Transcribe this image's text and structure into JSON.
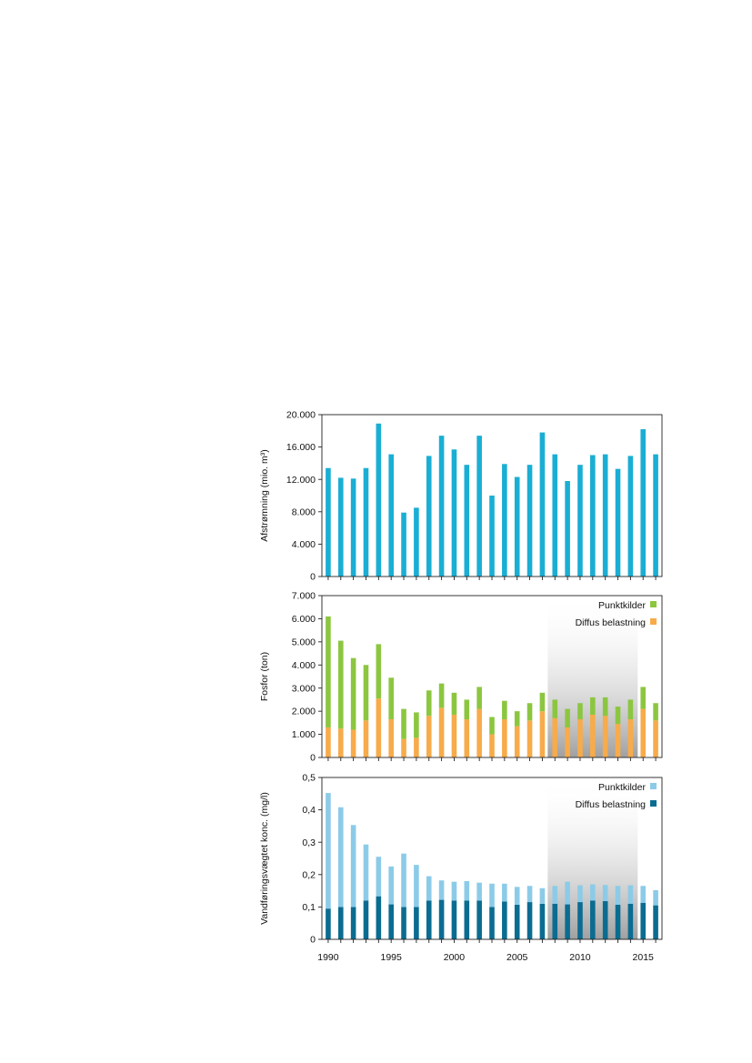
{
  "chart_data": [
    {
      "type": "bar",
      "ylabel": "Afstrømning (mio. m³)",
      "ylim": [
        0,
        20000
      ],
      "yticks": [
        0,
        4000,
        8000,
        12000,
        16000,
        20000
      ],
      "ytick_labels": [
        "0",
        "4.000",
        "8.000",
        "12.000",
        "16.000",
        "20.000"
      ],
      "x": [
        1990,
        1991,
        1992,
        1993,
        1994,
        1995,
        1996,
        1997,
        1998,
        1999,
        2000,
        2001,
        2002,
        2003,
        2004,
        2005,
        2006,
        2007,
        2008,
        2009,
        2010,
        2011,
        2012,
        2013,
        2014,
        2015,
        2016
      ],
      "series": [
        {
          "name": "Afstrømning",
          "color": "#1aaed4",
          "values": [
            13400,
            12200,
            12100,
            13400,
            18900,
            15100,
            7900,
            8500,
            14900,
            17400,
            15700,
            13800,
            17400,
            10000,
            13900,
            12300,
            13800,
            17800,
            15100,
            11800,
            13800,
            15000,
            15100,
            13300,
            14900,
            18200,
            15100
          ]
        }
      ]
    },
    {
      "type": "stacked-bar",
      "ylabel": "Fosfor (ton)",
      "ylim": [
        0,
        7000
      ],
      "yticks": [
        0,
        1000,
        2000,
        3000,
        4000,
        5000,
        6000,
        7000
      ],
      "ytick_labels": [
        "0",
        "1.000",
        "2.000",
        "3.000",
        "4.000",
        "5.000",
        "6.000",
        "7.000"
      ],
      "shaded_years": [
        2008,
        2014
      ],
      "x": [
        1990,
        1991,
        1992,
        1993,
        1994,
        1995,
        1996,
        1997,
        1998,
        1999,
        2000,
        2001,
        2002,
        2003,
        2004,
        2005,
        2006,
        2007,
        2008,
        2009,
        2010,
        2011,
        2012,
        2013,
        2014,
        2015,
        2016
      ],
      "series": [
        {
          "name": "Diffus belastning",
          "color": "#f7ab4a",
          "values": [
            1300,
            1250,
            1200,
            1600,
            2550,
            1650,
            800,
            850,
            1800,
            2150,
            1850,
            1650,
            2100,
            1000,
            1650,
            1350,
            1600,
            2000,
            1700,
            1300,
            1650,
            1850,
            1800,
            1450,
            1650,
            2100,
            1600
          ]
        },
        {
          "name": "Punktkilder",
          "color": "#8cc640",
          "values": [
            4800,
            3800,
            3100,
            2400,
            2350,
            1800,
            1300,
            1100,
            1100,
            1050,
            950,
            850,
            950,
            750,
            800,
            650,
            750,
            800,
            800,
            800,
            700,
            750,
            800,
            750,
            850,
            950,
            750
          ]
        }
      ],
      "legend": [
        {
          "label": "Punktkilder",
          "color": "#8cc640"
        },
        {
          "label": "Diffus belastning",
          "color": "#f7ab4a"
        }
      ]
    },
    {
      "type": "stacked-bar",
      "ylabel": "Vandføringsvægtet konc. (mg/l)",
      "ylim": [
        0,
        0.5
      ],
      "yticks": [
        0,
        0.1,
        0.2,
        0.3,
        0.4,
        0.5
      ],
      "ytick_labels": [
        "0",
        "0,1",
        "0,2",
        "0,3",
        "0,4",
        "0,5"
      ],
      "shaded_years": [
        2008,
        2014
      ],
      "x": [
        1990,
        1991,
        1992,
        1993,
        1994,
        1995,
        1996,
        1997,
        1998,
        1999,
        2000,
        2001,
        2002,
        2003,
        2004,
        2005,
        2006,
        2007,
        2008,
        2009,
        2010,
        2011,
        2012,
        2013,
        2014,
        2015,
        2016
      ],
      "series": [
        {
          "name": "Diffus belastning",
          "color": "#0b6c91",
          "values": [
            0.095,
            0.1,
            0.1,
            0.12,
            0.133,
            0.108,
            0.1,
            0.1,
            0.12,
            0.122,
            0.12,
            0.12,
            0.12,
            0.1,
            0.117,
            0.107,
            0.115,
            0.11,
            0.11,
            0.108,
            0.115,
            0.12,
            0.118,
            0.107,
            0.11,
            0.113,
            0.105
          ]
        },
        {
          "name": "Punktkilder",
          "color": "#8ccbe8",
          "values": [
            0.357,
            0.308,
            0.253,
            0.173,
            0.122,
            0.117,
            0.165,
            0.13,
            0.075,
            0.06,
            0.058,
            0.06,
            0.055,
            0.072,
            0.055,
            0.055,
            0.05,
            0.048,
            0.055,
            0.07,
            0.052,
            0.05,
            0.05,
            0.058,
            0.057,
            0.052,
            0.047
          ]
        }
      ],
      "legend": [
        {
          "label": "Punktkilder",
          "color": "#8ccbe8"
        },
        {
          "label": "Diffus belastning",
          "color": "#0b6c91"
        }
      ]
    }
  ],
  "xaxis": {
    "ticks": [
      1990,
      1995,
      2000,
      2005,
      2010,
      2015
    ],
    "tick_labels": [
      "1990",
      "1995",
      "2000",
      "2005",
      "2010",
      "2015"
    ]
  }
}
